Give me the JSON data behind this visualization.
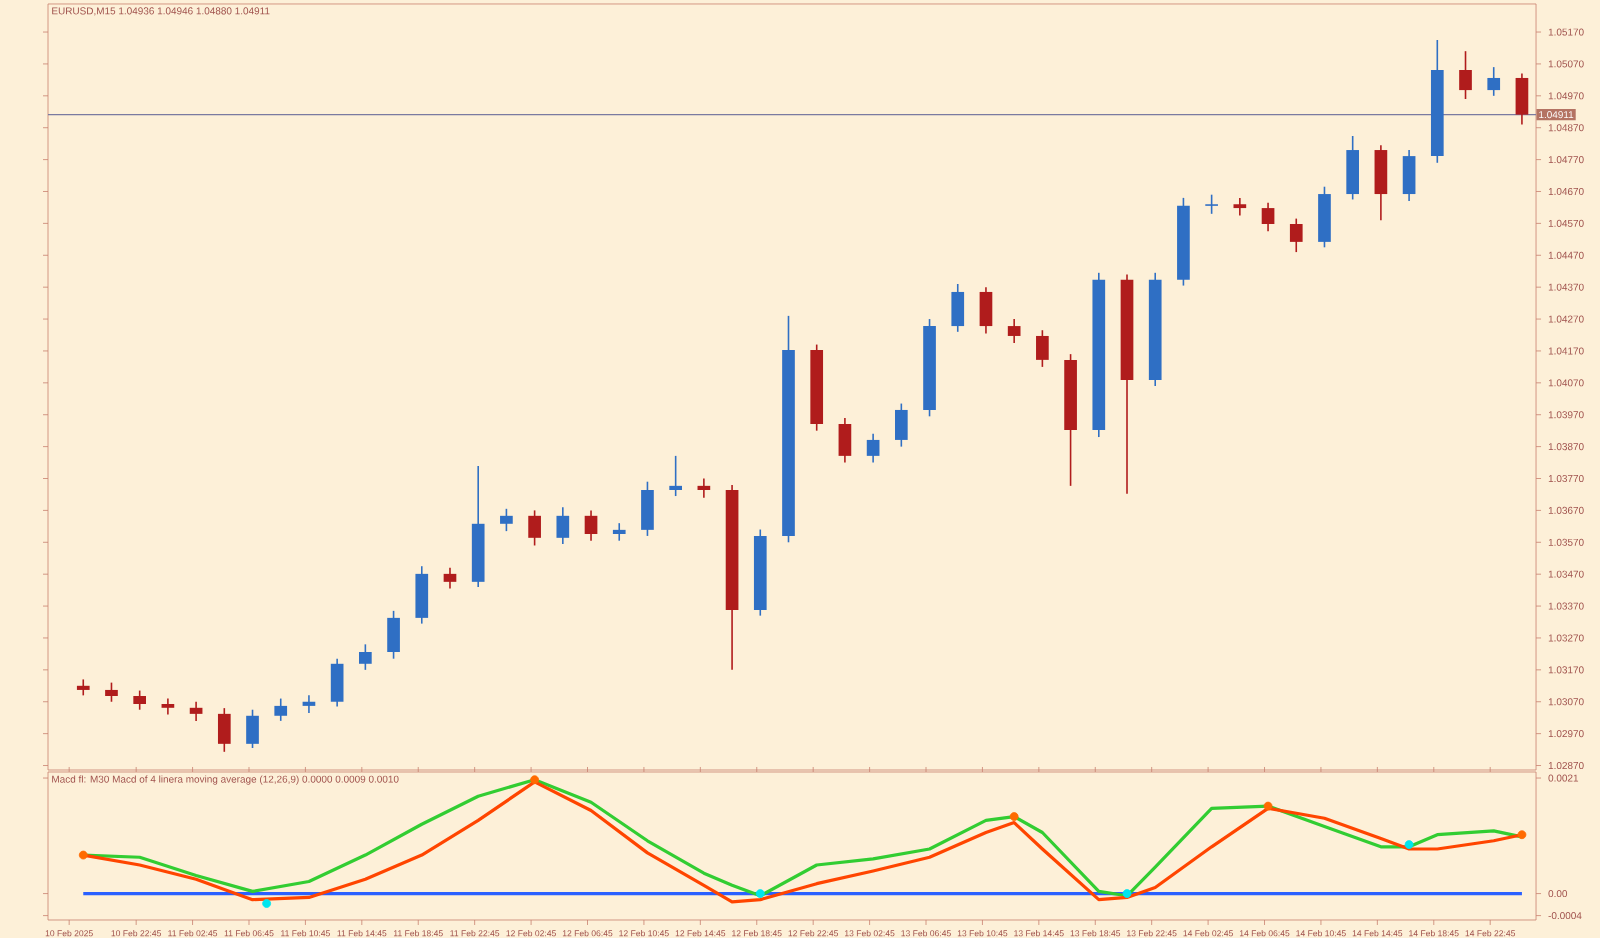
{
  "chart_data": [
    {
      "type": "candlestick",
      "title": "EURUSD,M15 1.04936 1.04946 1.04880 1.04911",
      "x": [
        "2025-02-10T19:00",
        "2025-02-10T21:00",
        "2025-02-10T23:00",
        "2025-02-11T01:00",
        "2025-02-11T03:00",
        "2025-02-11T05:00",
        "2025-02-11T07:00",
        "2025-02-11T09:00",
        "2025-02-11T11:00",
        "2025-02-11T13:00",
        "2025-02-11T15:00",
        "2025-02-11T17:00",
        "2025-02-11T19:00",
        "2025-02-11T21:00",
        "2025-02-11T23:00",
        "2025-02-12T01:00",
        "2025-02-12T03:00",
        "2025-02-12T05:00",
        "2025-02-12T07:00",
        "2025-02-12T09:00",
        "2025-02-12T11:00",
        "2025-02-12T13:00",
        "2025-02-12T15:00",
        "2025-02-12T17:00",
        "2025-02-12T19:00",
        "2025-02-12T21:00",
        "2025-02-12T23:00",
        "2025-02-13T01:00",
        "2025-02-13T03:00",
        "2025-02-13T05:00",
        "2025-02-13T07:00",
        "2025-02-13T09:00",
        "2025-02-13T11:00",
        "2025-02-13T13:00",
        "2025-02-13T15:00",
        "2025-02-13T17:00",
        "2025-02-13T19:00",
        "2025-02-13T21:00",
        "2025-02-13T23:00",
        "2025-02-14T01:00",
        "2025-02-14T03:00",
        "2025-02-14T05:00",
        "2025-02-14T07:00",
        "2025-02-14T09:00",
        "2025-02-14T11:00",
        "2025-02-14T13:00",
        "2025-02-14T15:00",
        "2025-02-14T17:00",
        "2025-02-14T19:00",
        "2025-02-14T21:00",
        "2025-02-14T23:00",
        "2025-02-15T01:00"
      ],
      "ohlc": [
        [
          1.0312,
          1.0314,
          1.0309,
          1.03107
        ],
        [
          1.03107,
          1.0313,
          1.0307,
          1.03088
        ],
        [
          1.03088,
          1.03105,
          1.03045,
          1.03063
        ],
        [
          1.03063,
          1.0308,
          1.0303,
          1.03051
        ],
        [
          1.03051,
          1.0307,
          1.0301,
          1.03032
        ],
        [
          1.03032,
          1.0305,
          1.02913,
          1.02938
        ],
        [
          1.02938,
          1.03045,
          1.02925,
          1.03026
        ],
        [
          1.03026,
          1.0308,
          1.0301,
          1.03057
        ],
        [
          1.03057,
          1.0309,
          1.03035,
          1.0307
        ],
        [
          1.0307,
          1.03205,
          1.03055,
          1.03189
        ],
        [
          1.03189,
          1.0325,
          1.0317,
          1.03226
        ],
        [
          1.03226,
          1.03355,
          1.03205,
          1.03333
        ],
        [
          1.03333,
          1.03495,
          1.03315,
          1.03471
        ],
        [
          1.03471,
          1.0349,
          1.03425,
          1.03446
        ],
        [
          1.03446,
          1.03809,
          1.0343,
          1.03628
        ],
        [
          1.03628,
          1.03675,
          1.03605,
          1.03653
        ],
        [
          1.03653,
          1.0367,
          1.0356,
          1.03584
        ],
        [
          1.03584,
          1.0368,
          1.03565,
          1.03653
        ],
        [
          1.03653,
          1.0367,
          1.03575,
          1.03596
        ],
        [
          1.03596,
          1.0363,
          1.03575,
          1.03609
        ],
        [
          1.03609,
          1.0376,
          1.0359,
          1.03734
        ],
        [
          1.03734,
          1.03841,
          1.03715,
          1.03747
        ],
        [
          1.03747,
          1.0377,
          1.0371,
          1.03734
        ],
        [
          1.03734,
          1.0375,
          1.0317,
          1.03358
        ],
        [
          1.03358,
          1.0361,
          1.0334,
          1.0359
        ],
        [
          1.0359,
          1.0428,
          1.0357,
          1.04173
        ],
        [
          1.04173,
          1.0419,
          1.0392,
          1.03941
        ],
        [
          1.03941,
          1.0396,
          1.0382,
          1.03841
        ],
        [
          1.03841,
          1.0391,
          1.0382,
          1.03891
        ],
        [
          1.03891,
          1.04005,
          1.0387,
          1.03985
        ],
        [
          1.03985,
          1.0427,
          1.03965,
          1.04248
        ],
        [
          1.04248,
          1.0438,
          1.0423,
          1.04355
        ],
        [
          1.04355,
          1.0437,
          1.04225,
          1.04248
        ],
        [
          1.04248,
          1.0427,
          1.04195,
          1.04217
        ],
        [
          1.04217,
          1.04235,
          1.0412,
          1.04142
        ],
        [
          1.04142,
          1.0416,
          1.03747,
          1.03922
        ],
        [
          1.03922,
          1.04415,
          1.039,
          1.04393
        ],
        [
          1.04393,
          1.0441,
          1.03722,
          1.04079
        ],
        [
          1.04079,
          1.04415,
          1.0406,
          1.04393
        ],
        [
          1.04393,
          1.0465,
          1.04375,
          1.04625
        ],
        [
          1.04625,
          1.0466,
          1.046,
          1.0463
        ],
        [
          1.0463,
          1.0465,
          1.04595,
          1.04618
        ],
        [
          1.04618,
          1.04635,
          1.04545,
          1.04568
        ],
        [
          1.04568,
          1.04585,
          1.0448,
          1.04512
        ],
        [
          1.04512,
          1.04685,
          1.04495,
          1.04662
        ],
        [
          1.04662,
          1.04844,
          1.04645,
          1.048
        ],
        [
          1.048,
          1.04815,
          1.0458,
          1.04662
        ],
        [
          1.04662,
          1.048,
          1.0464,
          1.04781
        ],
        [
          1.04781,
          1.05145,
          1.0476,
          1.05051
        ],
        [
          1.05051,
          1.0511,
          1.0496,
          1.04988
        ],
        [
          1.04988,
          1.0506,
          1.0497,
          1.05026
        ],
        [
          1.05026,
          1.0504,
          1.0488,
          1.04911
        ]
      ],
      "colors": [
        "#b01c1c",
        "#b01c1c",
        "#b01c1c",
        "#b01c1c",
        "#b01c1c",
        "#b01c1c",
        "#2f6fc4",
        "#2f6fc4",
        "#2f6fc4",
        "#2f6fc4",
        "#2f6fc4",
        "#2f6fc4",
        "#2f6fc4",
        "#b01c1c",
        "#2f6fc4",
        "#2f6fc4",
        "#b01c1c",
        "#2f6fc4",
        "#b01c1c",
        "#2f6fc4",
        "#2f6fc4",
        "#2f6fc4",
        "#b01c1c",
        "#b01c1c",
        "#2f6fc4",
        "#2f6fc4",
        "#b01c1c",
        "#b01c1c",
        "#2f6fc4",
        "#2f6fc4",
        "#2f6fc4",
        "#2f6fc4",
        "#b01c1c",
        "#b01c1c",
        "#b01c1c",
        "#b01c1c",
        "#2f6fc4",
        "#b01c1c",
        "#2f6fc4",
        "#2f6fc4",
        "#2f6fc4",
        "#b01c1c",
        "#b01c1c",
        "#b01c1c",
        "#2f6fc4",
        "#2f6fc4",
        "#b01c1c",
        "#2f6fc4",
        "#2f6fc4",
        "#b01c1c",
        "#2f6fc4",
        "#b01c1c"
      ],
      "xlim": [
        "2025-02-10T16:30",
        "2025-02-15T02:00"
      ],
      "ylim": [
        1.02856,
        1.05258
      ],
      "yticks": [
        {
          "value": 1.0287,
          "label": "1.02870"
        },
        {
          "value": 1.0297,
          "label": "1.02970"
        },
        {
          "value": 1.0307,
          "label": "1.03070"
        },
        {
          "value": 1.0317,
          "label": "1.03170"
        },
        {
          "value": 1.0327,
          "label": "1.03270"
        },
        {
          "value": 1.0337,
          "label": "1.03370"
        },
        {
          "value": 1.0347,
          "label": "1.03470"
        },
        {
          "value": 1.0357,
          "label": "1.03570"
        },
        {
          "value": 1.0367,
          "label": "1.03670"
        },
        {
          "value": 1.0377,
          "label": "1.03770"
        },
        {
          "value": 1.0387,
          "label": "1.03870"
        },
        {
          "value": 1.0397,
          "label": "1.03970"
        },
        {
          "value": 1.0407,
          "label": "1.04070"
        },
        {
          "value": 1.0417,
          "label": "1.04170"
        },
        {
          "value": 1.0427,
          "label": "1.04270"
        },
        {
          "value": 1.0437,
          "label": "1.04370"
        },
        {
          "value": 1.0447,
          "label": "1.04470"
        },
        {
          "value": 1.0457,
          "label": "1.04570"
        },
        {
          "value": 1.0467,
          "label": "1.04670"
        },
        {
          "value": 1.0477,
          "label": "1.04770"
        },
        {
          "value": 1.0487,
          "label": "1.04870"
        },
        {
          "value": 1.0497,
          "label": "1.04970"
        },
        {
          "value": 1.0507,
          "label": "1.05070"
        },
        {
          "value": 1.0517,
          "label": "1.05170"
        }
      ],
      "ref_lines": [
        {
          "axis": "y",
          "value": 1.04911,
          "label": "1.04911",
          "color": "#7a7aa0"
        }
      ],
      "tick_labels": "y"
    },
    {
      "type": "line",
      "title": "Macd fl: M30 Macd of 4 linera moving average (12,26,9) 0.0000 0.0009 0.0010",
      "x": [
        "2025-02-10T19:00",
        "2025-02-10T23:00",
        "2025-02-11T03:00",
        "2025-02-11T07:00",
        "2025-02-11T11:00",
        "2025-02-11T15:00",
        "2025-02-11T19:00",
        "2025-02-11T23:00",
        "2025-02-12T03:00",
        "2025-02-12T07:00",
        "2025-02-12T11:00",
        "2025-02-12T15:00",
        "2025-02-12T17:00",
        "2025-02-12T19:00",
        "2025-02-12T23:00",
        "2025-02-13T03:00",
        "2025-02-13T07:00",
        "2025-02-13T11:00",
        "2025-02-13T13:00",
        "2025-02-13T15:00",
        "2025-02-13T19:00",
        "2025-02-13T21:00",
        "2025-02-13T23:00",
        "2025-02-14T03:00",
        "2025-02-14T07:00",
        "2025-02-14T11:00",
        "2025-02-14T15:00",
        "2025-02-14T17:00",
        "2025-02-14T19:00",
        "2025-02-14T23:00",
        "2025-02-15T01:00"
      ],
      "series": [
        {
          "type": "line",
          "color": "#2a60ff",
          "values": [
            0,
            0,
            0,
            0,
            0,
            0,
            0,
            0,
            0,
            0,
            0,
            0,
            0,
            0,
            0,
            0,
            0,
            0,
            0,
            0,
            0,
            0,
            0,
            0,
            0,
            0,
            0,
            0,
            0,
            0,
            0
          ]
        },
        {
          "type": "line",
          "color": "#32cd32",
          "values": [
            0.0007,
            0.00066,
            0.00033,
            4e-05,
            0.00022,
            0.0007,
            0.00126,
            0.00177,
            0.00207,
            0.00166,
            0.00096,
            0.00037,
            0.00015,
            -4e-05,
            0.00052,
            0.00063,
            0.00081,
            0.00133,
            0.0014,
            0.00111,
            4e-05,
            -4e-05,
            0.00048,
            0.00155,
            0.00159,
            0.00122,
            0.00085,
            0.00085,
            0.00107,
            0.00114,
            0.00103
          ]
        },
        {
          "type": "line",
          "color": "#ff4500",
          "values": [
            0.0007,
            0.00052,
            0.00026,
            -0.00011,
            -7e-05,
            0.00026,
            0.0007,
            0.00133,
            0.00203,
            0.00151,
            0.00074,
            0.00015,
            -0.00015,
            -0.00011,
            0.00018,
            0.00041,
            0.00066,
            0.00111,
            0.00129,
            0.00081,
            -0.00011,
            -7e-05,
            0.00011,
            0.00085,
            0.00155,
            0.00137,
            0.001,
            0.00081,
            0.00081,
            0.00096,
            0.00107
          ]
        },
        {
          "type": "scatter",
          "color": "#ff6a00",
          "x": [
            "2025-02-10T19:00",
            "2025-02-12T03:00",
            "2025-02-13T13:00",
            "2025-02-14T07:00",
            "2025-02-15T01:00"
          ],
          "values": [
            0.0007,
            0.00207,
            0.0014,
            0.00159,
            0.00107
          ]
        },
        {
          "type": "scatter",
          "color": "#00e5ee",
          "x": [
            "2025-02-11T08:00",
            "2025-02-12T19:00",
            "2025-02-13T21:00",
            "2025-02-14T17:00"
          ],
          "values": [
            -0.00018,
            0,
            0,
            0.00089
          ]
        }
      ],
      "xlim": [
        "2025-02-10T16:30",
        "2025-02-15T02:00"
      ],
      "ylim": [
        -0.00048,
        0.00221
      ],
      "yticks": [
        {
          "value": 0.0021,
          "label": "0.0021"
        },
        {
          "value": 0,
          "label": "0.00"
        },
        {
          "value": -0.0004,
          "label": "-0.0004"
        }
      ],
      "xticks": [
        {
          "value": "2025-02-10T18:00",
          "label": "10 Feb 2025"
        },
        {
          "value": "2025-02-10T22:45",
          "label": "10 Feb 22:45"
        },
        {
          "value": "2025-02-11T02:45",
          "label": "11 Feb 02:45"
        },
        {
          "value": "2025-02-11T06:45",
          "label": "11 Feb 06:45"
        },
        {
          "value": "2025-02-11T10:45",
          "label": "11 Feb 10:45"
        },
        {
          "value": "2025-02-11T14:45",
          "label": "11 Feb 14:45"
        },
        {
          "value": "2025-02-11T18:45",
          "label": "11 Feb 18:45"
        },
        {
          "value": "2025-02-11T22:45",
          "label": "11 Feb 22:45"
        },
        {
          "value": "2025-02-12T02:45",
          "label": "12 Feb 02:45"
        },
        {
          "value": "2025-02-12T06:45",
          "label": "12 Feb 06:45"
        },
        {
          "value": "2025-02-12T10:45",
          "label": "12 Feb 10:45"
        },
        {
          "value": "2025-02-12T14:45",
          "label": "12 Feb 14:45"
        },
        {
          "value": "2025-02-12T18:45",
          "label": "12 Feb 18:45"
        },
        {
          "value": "2025-02-12T22:45",
          "label": "12 Feb 22:45"
        },
        {
          "value": "2025-02-13T02:45",
          "label": "13 Feb 02:45"
        },
        {
          "value": "2025-02-13T06:45",
          "label": "13 Feb 06:45"
        },
        {
          "value": "2025-02-13T10:45",
          "label": "13 Feb 10:45"
        },
        {
          "value": "2025-02-13T14:45",
          "label": "13 Feb 14:45"
        },
        {
          "value": "2025-02-13T18:45",
          "label": "13 Feb 18:45"
        },
        {
          "value": "2025-02-13T22:45",
          "label": "13 Feb 22:45"
        },
        {
          "value": "2025-02-14T02:45",
          "label": "14 Feb 02:45"
        },
        {
          "value": "2025-02-14T06:45",
          "label": "14 Feb 06:45"
        },
        {
          "value": "2025-02-14T10:45",
          "label": "14 Feb 10:45"
        },
        {
          "value": "2025-02-14T14:45",
          "label": "14 Feb 14:45"
        },
        {
          "value": "2025-02-14T18:45",
          "label": "14 Feb 18:45"
        },
        {
          "value": "2025-02-14T22:45",
          "label": "14 Feb 22:45"
        }
      ]
    }
  ]
}
